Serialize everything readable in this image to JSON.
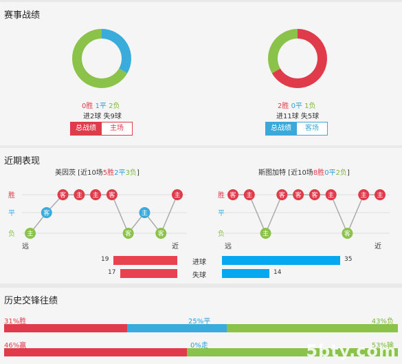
{
  "colors": {
    "win": "#e03b4b",
    "draw": "#3aacdc",
    "loss": "#8bc34a",
    "red_bar": "#e8414f",
    "blue_bar": "#06a8f0",
    "teal_btn": "#3aa8d8"
  },
  "record": {
    "title": "赛事战绩",
    "left": {
      "wins": 0,
      "draws": 1,
      "losses": 2,
      "win_text": "0胜",
      "draw_text": "1平",
      "loss_text": "2负",
      "goals_text": "进2球  失9球",
      "btn_total": "总战绩",
      "btn_side": "主场"
    },
    "right": {
      "wins": 2,
      "draws": 0,
      "losses": 1,
      "win_text": "2胜",
      "draw_text": "0平",
      "loss_text": "1负",
      "goals_text": "进11球  失5球",
      "btn_total": "总战绩",
      "btn_side": "客场"
    }
  },
  "recent": {
    "title": "近期表现",
    "left": {
      "team": "美因茨",
      "summary_pre": " [近10场",
      "win_text": "5胜",
      "draw_text": "2平",
      "loss_text": "3负",
      "summary_post": "]",
      "results": [
        "L",
        "D",
        "W",
        "W",
        "W",
        "W",
        "L",
        "D",
        "L",
        "W"
      ],
      "venues": [
        "主",
        "客",
        "客",
        "主",
        "主",
        "客",
        "客",
        "主",
        "客",
        "主"
      ],
      "far": "远",
      "near": "近",
      "y_win": "胜",
      "y_draw": "平",
      "y_loss": "负"
    },
    "right": {
      "team": "斯图加特",
      "summary_pre": " [近10场",
      "win_text": "8胜",
      "draw_text": "0平",
      "loss_text": "2负",
      "summary_post": "]",
      "results": [
        "W",
        "W",
        "L",
        "W",
        "W",
        "W",
        "W",
        "L",
        "W",
        "W"
      ],
      "venues": [
        "客",
        "主",
        "主",
        "客",
        "客",
        "客",
        "主",
        "客",
        "主",
        "主"
      ],
      "far": "远",
      "near": "近",
      "y_win": "胜",
      "y_draw": "平",
      "y_loss": "负"
    },
    "goals_for_label": "进球",
    "goals_against_label": "失球",
    "left_goals_for": 19,
    "left_goals_against": 17,
    "right_goals_for": 35,
    "right_goals_against": 14
  },
  "history": {
    "title": "历史交锋往绩",
    "row1": {
      "win_pct": 31,
      "draw_pct": 25,
      "loss_pct": 43,
      "win_text": "31%胜",
      "draw_text": "25%平",
      "loss_text": "43%负"
    },
    "row2": {
      "a_pct": 46,
      "b_pct": 0,
      "c_pct": 53,
      "a_text": "46%赢",
      "b_text": "0%走",
      "c_text": "53%输"
    }
  },
  "watermark": "5bty.com"
}
